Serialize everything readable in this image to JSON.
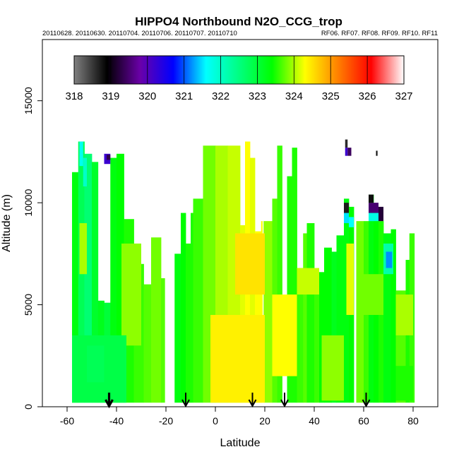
{
  "chart_data": {
    "type": "heatmap",
    "title": "HIPPO4 Northbound N2O_CCG_trop",
    "subtitle_left": "20110628. 20110630. 20110704. 20110706. 20110707. 20110710",
    "subtitle_right": "RF06. RF07. RF08. RF09. RF10. RF11",
    "xlabel": "Latitude",
    "ylabel": "Altitude (m)",
    "xlim": [
      -70,
      90
    ],
    "ylim": [
      0,
      18000
    ],
    "x_ticks": [
      -60,
      -40,
      -20,
      0,
      20,
      40,
      60,
      80
    ],
    "x_tick_labels": [
      "-60",
      "-40",
      "-20",
      "0",
      "20",
      "40",
      "60",
      "80"
    ],
    "y_ticks": [
      0,
      5000,
      10000,
      15000
    ],
    "y_tick_labels": [
      "0",
      "5000",
      "10000",
      "15000"
    ],
    "colorbar": {
      "range": [
        318,
        327
      ],
      "ticks": [
        318,
        319,
        320,
        321,
        322,
        323,
        324,
        325,
        326,
        327
      ],
      "tick_labels": [
        "318",
        "319",
        "320",
        "321",
        "322",
        "323",
        "324",
        "325",
        "326",
        "327"
      ],
      "colors": [
        "#808080",
        "#000000",
        "#6a00a8",
        "#0000ff",
        "#00ffff",
        "#00ff80",
        "#00ff00",
        "#ffff00",
        "#ff8000",
        "#ff0000",
        "#ffffff"
      ]
    },
    "profile_arrows_latitude": [
      -43,
      -12,
      15,
      28,
      61
    ],
    "profile_arrow_emphasized": -43,
    "columns": [
      {
        "x0": -58.0,
        "x1": -55.5,
        "top": 11500,
        "v": 323.3
      },
      {
        "x0": -55.5,
        "x1": -53.0,
        "top": 13000,
        "v": 322.8
      },
      {
        "x0": -53.0,
        "x1": -50.0,
        "top": 12400,
        "v": 322.6
      },
      {
        "x0": -50.0,
        "x1": -47.5,
        "top": 12000,
        "v": 323.1
      },
      {
        "x0": -47.5,
        "x1": -45.0,
        "top": 5200,
        "v": 323.2
      },
      {
        "x0": -45.0,
        "x1": -42.5,
        "top": 5100,
        "v": 323.0
      },
      {
        "x0": -42.5,
        "x1": -40.0,
        "top": 12200,
        "v": 323.3
      },
      {
        "x0": -40.0,
        "x1": -37.0,
        "top": 12400,
        "v": 323.4
      },
      {
        "x0": -37.0,
        "x1": -33.0,
        "top": 9200,
        "v": 323.5
      },
      {
        "x0": -33.0,
        "x1": -29.0,
        "top": 7000,
        "v": 323.6
      },
      {
        "x0": -29.0,
        "x1": -26.0,
        "top": 6000,
        "v": 323.7
      },
      {
        "x0": -26.0,
        "x1": -22.0,
        "top": 8300,
        "v": 323.8
      },
      {
        "x0": -22.0,
        "x1": -20.5,
        "top": 6300,
        "v": 323.7
      },
      {
        "x0": -16.5,
        "x1": -14.0,
        "top": 7500,
        "v": 323.3
      },
      {
        "x0": -14.0,
        "x1": -12.0,
        "top": 9500,
        "v": 323.4
      },
      {
        "x0": -12.0,
        "x1": -10.0,
        "top": 8000,
        "v": 323.5
      },
      {
        "x0": -10.0,
        "x1": -9.0,
        "top": 9500,
        "v": 323.5
      },
      {
        "x0": -9.0,
        "x1": -5.0,
        "top": 10200,
        "v": 323.6
      },
      {
        "x0": -5.0,
        "x1": 0.0,
        "top": 12800,
        "v": 323.8
      },
      {
        "x0": 0.0,
        "x1": 5.0,
        "top": 12800,
        "v": 324.0
      },
      {
        "x0": 5.0,
        "x1": 10.0,
        "top": 12800,
        "v": 324.1
      },
      {
        "x0": 10.0,
        "x1": 12.0,
        "top": 8900,
        "v": 324.2
      },
      {
        "x0": 12.0,
        "x1": 14.0,
        "top": 13000,
        "v": 324.3
      },
      {
        "x0": 14.0,
        "x1": 16.0,
        "top": 12200,
        "v": 324.2
      },
      {
        "x0": 16.0,
        "x1": 18.5,
        "top": 8600,
        "v": 324.3
      },
      {
        "x0": 18.5,
        "x1": 19.0,
        "top": 9100,
        "v": 324.3
      },
      {
        "x0": 19.5,
        "x1": 23.0,
        "top": 9100,
        "v": 323.9
      },
      {
        "x0": 23.0,
        "x1": 25.0,
        "top": 10200,
        "v": 323.7
      },
      {
        "x0": 25.0,
        "x1": 27.0,
        "top": 12800,
        "v": 323.6
      },
      {
        "x0": 29.0,
        "x1": 31.0,
        "top": 11300,
        "v": 323.5
      },
      {
        "x0": 31.0,
        "x1": 33.0,
        "top": 12700,
        "v": 323.5
      },
      {
        "x0": 33.0,
        "x1": 35.5,
        "top": 6800,
        "v": 323.6
      },
      {
        "x0": 35.5,
        "x1": 37.0,
        "top": 8500,
        "v": 323.7
      },
      {
        "x0": 37.0,
        "x1": 40.0,
        "top": 9000,
        "v": 323.5
      },
      {
        "x0": 40.0,
        "x1": 42.0,
        "top": 6000,
        "v": 323.6
      },
      {
        "x0": 42.0,
        "x1": 44.0,
        "top": 6600,
        "v": 323.4
      },
      {
        "x0": 44.0,
        "x1": 47.0,
        "top": 7800,
        "v": 323.4
      },
      {
        "x0": 47.0,
        "x1": 49.0,
        "top": 7600,
        "v": 323.2
      },
      {
        "x0": 49.0,
        "x1": 52.0,
        "top": 8400,
        "v": 323.3
      },
      {
        "x0": 52.0,
        "x1": 54.0,
        "top": 10200,
        "v": 323.3
      },
      {
        "x0": 54.0,
        "x1": 56.0,
        "top": 9800,
        "v": 323.4
      },
      {
        "x0": 57.0,
        "x1": 60.0,
        "top": 9100,
        "v": 323.8
      },
      {
        "x0": 60.0,
        "x1": 62.0,
        "top": 9100,
        "v": 323.6
      },
      {
        "x0": 62.0,
        "x1": 64.0,
        "top": 10400,
        "v": 323.3
      },
      {
        "x0": 64.0,
        "x1": 66.0,
        "top": 9800,
        "v": 323.4
      },
      {
        "x0": 66.0,
        "x1": 68.0,
        "top": 9100,
        "v": 323.5
      },
      {
        "x0": 68.0,
        "x1": 71.0,
        "top": 8500,
        "v": 323.3
      },
      {
        "x0": 71.0,
        "x1": 73.0,
        "top": 8700,
        "v": 323.4
      },
      {
        "x0": 73.0,
        "x1": 77.0,
        "top": 5700,
        "v": 323.7
      },
      {
        "x0": 77.0,
        "x1": 78.5,
        "top": 7200,
        "v": 323.5
      },
      {
        "x0": 78.5,
        "x1": 80.5,
        "top": 8500,
        "v": 323.6
      }
    ],
    "features": [
      {
        "x0": -55.0,
        "x1": -52.0,
        "y0": 6500,
        "y1": 9000,
        "v": 324.0
      },
      {
        "x0": -38.0,
        "x1": -30.0,
        "y0": 3000,
        "y1": 8000,
        "v": 323.9
      },
      {
        "x0": -58.0,
        "x1": -36.0,
        "y0": 200,
        "y1": 3500,
        "v": 322.9
      },
      {
        "x0": -52.0,
        "x1": -45.0,
        "y0": 1200,
        "y1": 3000,
        "v": 322.8
      },
      {
        "x0": -55.0,
        "x1": -53.5,
        "y0": 11800,
        "y1": 13000,
        "v": 321.7
      },
      {
        "x0": -53.5,
        "x1": -52.0,
        "y0": 10800,
        "y1": 12200,
        "v": 322.0
      },
      {
        "x0": -45.0,
        "x1": -42.5,
        "y0": 11900,
        "y1": 12400,
        "v": 320.2
      },
      {
        "x0": -44.0,
        "x1": -42.5,
        "y0": 12100,
        "y1": 12350,
        "v": 319.3
      },
      {
        "x0": -2.0,
        "x1": 20.0,
        "y0": 200,
        "y1": 4500,
        "v": 324.4
      },
      {
        "x0": 8.0,
        "x1": 20.0,
        "y0": 5500,
        "y1": 8500,
        "v": 324.5
      },
      {
        "x0": 23.0,
        "x1": 33.0,
        "y0": 1500,
        "y1": 5500,
        "v": 324.3
      },
      {
        "x0": 33.0,
        "x1": 42.0,
        "y0": 5500,
        "y1": 6800,
        "v": 324.1
      },
      {
        "x0": 43.0,
        "x1": 52.0,
        "y0": 300,
        "y1": 3500,
        "v": 323.9
      },
      {
        "x0": 53.0,
        "x1": 56.0,
        "y0": 4500,
        "y1": 8000,
        "v": 324.2
      },
      {
        "x0": 60.0,
        "x1": 68.0,
        "y0": 4500,
        "y1": 6500,
        "v": 323.8
      },
      {
        "x0": 73.0,
        "x1": 80.0,
        "y0": 3500,
        "y1": 5500,
        "v": 324.0
      },
      {
        "x0": 73.0,
        "x1": 80.0,
        "y0": 300,
        "y1": 2000,
        "v": 323.5
      },
      {
        "x0": 68.0,
        "x1": 72.0,
        "y0": 6500,
        "y1": 8000,
        "v": 322.2
      },
      {
        "x0": 69.0,
        "x1": 71.5,
        "y0": 6800,
        "y1": 7600,
        "v": 321.2
      },
      {
        "x0": 52.0,
        "x1": 54.0,
        "y0": 9000,
        "y1": 9500,
        "v": 321.5
      },
      {
        "x0": 52.0,
        "x1": 54.0,
        "y0": 9500,
        "y1": 10000,
        "v": 318.7
      },
      {
        "x0": 54.0,
        "x1": 56.0,
        "y0": 8800,
        "y1": 9300,
        "v": 321.6
      },
      {
        "x0": 62.0,
        "x1": 66.0,
        "y0": 9100,
        "y1": 9500,
        "v": 321.8
      },
      {
        "x0": 62.0,
        "x1": 66.0,
        "y0": 9500,
        "y1": 10000,
        "v": 319.5
      },
      {
        "x0": 62.0,
        "x1": 64.0,
        "y0": 10000,
        "y1": 10400,
        "v": 318.8
      },
      {
        "x0": 66.0,
        "x1": 68.0,
        "y0": 9100,
        "y1": 9800,
        "v": 319.2
      },
      {
        "x0": 52.5,
        "x1": 53.5,
        "y0": 12300,
        "y1": 12700,
        "v": 320.2
      },
      {
        "x0": 53.5,
        "x1": 55.0,
        "y0": 12300,
        "y1": 12700,
        "v": 319.4
      },
      {
        "x0": 52.5,
        "x1": 53.5,
        "y0": 12700,
        "y1": 13100,
        "v": 318.6
      },
      {
        "x0": 65.0,
        "x1": 65.6,
        "y0": 12300,
        "y1": 12550,
        "v": 318.8
      }
    ]
  }
}
